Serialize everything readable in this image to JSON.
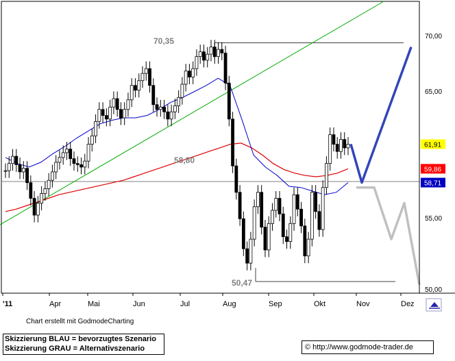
{
  "chart_data": {
    "type": "candlestick",
    "x_labels": [
      "'11",
      "Apr",
      "Mai",
      "Jun",
      "Jul",
      "Aug",
      "Sep",
      "Okt",
      "Nov",
      "Dez"
    ],
    "y_ticks": [
      "70,00",
      "65,00",
      "55,00",
      "50,00"
    ],
    "ylim": [
      49.5,
      73.8
    ],
    "grid": false,
    "annotations": {
      "high": "70,35",
      "support": "58,80",
      "low": "50,47"
    },
    "price_tags": [
      {
        "label": "61,91",
        "value": 61.91,
        "color": "#ffff00",
        "text_color": "#000000"
      },
      {
        "label": "59,86",
        "value": 59.86,
        "color": "#ff0000",
        "text_color": "#ffffff"
      },
      {
        "label": "58,71",
        "value": 58.71,
        "color": "#0000c0",
        "text_color": "#ffffff"
      }
    ],
    "close": [
      59.7,
      60.3,
      60.9,
      60.2,
      59.6,
      59.9,
      58.7,
      57.4,
      56.0,
      57.0,
      57.8,
      58.2,
      58.9,
      59.6,
      60.4,
      60.8,
      61.2,
      61.5,
      60.7,
      60.3,
      60.2,
      60.0,
      60.5,
      61.9,
      62.6,
      63.8,
      64.8,
      64.3,
      64.0,
      65.0,
      65.7,
      64.8,
      64.1,
      64.8,
      65.6,
      66.8,
      66.4,
      67.2,
      67.8,
      68.2,
      66.8,
      65.2,
      64.8,
      65.0,
      64.6,
      64.0,
      64.6,
      65.1,
      65.8,
      66.9,
      68.0,
      67.5,
      68.2,
      69.2,
      69.6,
      68.9,
      69.4,
      70.0,
      69.2,
      69.8,
      69.5,
      67.0,
      64.0,
      60.1,
      57.9,
      55.7,
      53.2,
      52.0,
      54.0,
      56.7,
      57.9,
      55.0,
      53.1,
      55.3,
      56.4,
      57.4,
      56.1,
      54.2,
      53.8,
      55.3,
      57.7,
      56.5,
      55.1,
      52.6,
      54.0,
      57.9,
      56.3,
      54.8,
      58.3,
      60.3,
      62.7,
      61.9,
      61.3,
      62.3,
      61.6,
      61.9
    ],
    "ma_red": [
      56.3,
      56.5,
      56.8,
      57.1,
      57.4,
      57.7,
      57.9,
      58.1,
      58.3,
      58.5,
      58.7,
      58.9,
      59.2,
      59.5,
      59.8,
      60.1,
      60.4,
      60.7,
      61.0,
      61.3,
      61.6,
      61.9,
      62.0,
      61.6,
      61.0,
      60.3,
      59.8,
      59.5,
      59.3,
      59.2,
      59.3,
      59.5,
      59.86
    ],
    "ma_blue": [
      60.8,
      60.3,
      60.0,
      60.4,
      61.1,
      61.7,
      62.4,
      63.0,
      63.6,
      63.9,
      64.1,
      64.1,
      64.3,
      64.8,
      65.4,
      65.8,
      66.3,
      66.8,
      67.4,
      66.8,
      64.0,
      61.0,
      60.0,
      59.3,
      58.4,
      58.3,
      58.0,
      57.7,
      57.9,
      58.71
    ],
    "trend_line": {
      "from": [
        0,
        55.2
      ],
      "to": [
        560,
        73.8
      ]
    },
    "blue_scenario": [
      61.91,
      58.71,
      70.0
    ],
    "grey_scenario": [
      58.3,
      58.3,
      54.0,
      57.0,
      50.2
    ]
  },
  "credit": "Chart erstellt mit GodmodeCharting",
  "legend": {
    "line1": "Skizzierung BLAU = bevorzugtes Szenario",
    "line2": "Skizzierung GRAU = Alternativszenario"
  },
  "url": "© http://www.godmode-trader.de",
  "colors": {
    "ma_red": "#dd0000",
    "ma_blue": "#0000cc",
    "trend": "#00aa00",
    "scenario_blue": "#3344bb",
    "scenario_grey": "#c0c0c0"
  }
}
